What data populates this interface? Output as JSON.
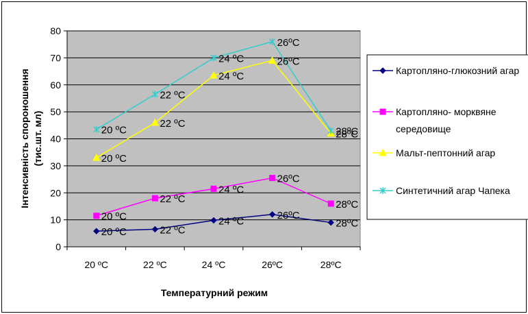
{
  "chart_data": {
    "type": "line",
    "categories": [
      "20 ºC",
      "22 ºC",
      "24 ºC",
      "26ºC",
      "28ºC"
    ],
    "xlabel": "Температурний режим",
    "ylabel": "Інтенсивність спороношення",
    "ylabel_line2": "(тис.шт. мл)",
    "ylim": [
      0,
      80
    ],
    "yticks": [
      0,
      10,
      20,
      30,
      40,
      50,
      60,
      70,
      80
    ],
    "grid": "horizontal",
    "plot_background": "#c0c0c0",
    "legend_position": "right",
    "series": [
      {
        "name": "Картопляно-глюкозний агар",
        "color": "#000080",
        "marker": "diamond",
        "values": [
          5.8,
          6.5,
          9.8,
          12,
          9
        ],
        "labels": [
          "20 ºC",
          "22 ºC",
          "24 ºC",
          "26ºC",
          "28ºC"
        ]
      },
      {
        "name": "Картопляно- морквяне середовище",
        "name_lines": [
          "Картопляно- морквяне",
          "середовище"
        ],
        "color": "#ff00ff",
        "marker": "square",
        "values": [
          11.5,
          18,
          21.5,
          25.5,
          16
        ],
        "labels": [
          "20 ºC",
          "22 ºC",
          "24 ºC",
          "26ºC",
          "28ºC"
        ]
      },
      {
        "name": "Мальт-пептонний агар",
        "color": "#ffff00",
        "marker": "triangle",
        "values": [
          33,
          46,
          63.5,
          69,
          42
        ],
        "labels": [
          "20 ºC",
          "22 ºC",
          "24 ºC",
          "26ºC",
          "28ºC"
        ]
      },
      {
        "name": "Синтетичний агар Чапека",
        "color": "#33cccc",
        "marker": "asterisk",
        "values": [
          43.5,
          56.5,
          70,
          76,
          43
        ],
        "labels": [
          "20 ºC",
          "22 ºC",
          "24 ºC",
          "26ºC",
          "28ºC"
        ]
      }
    ]
  }
}
